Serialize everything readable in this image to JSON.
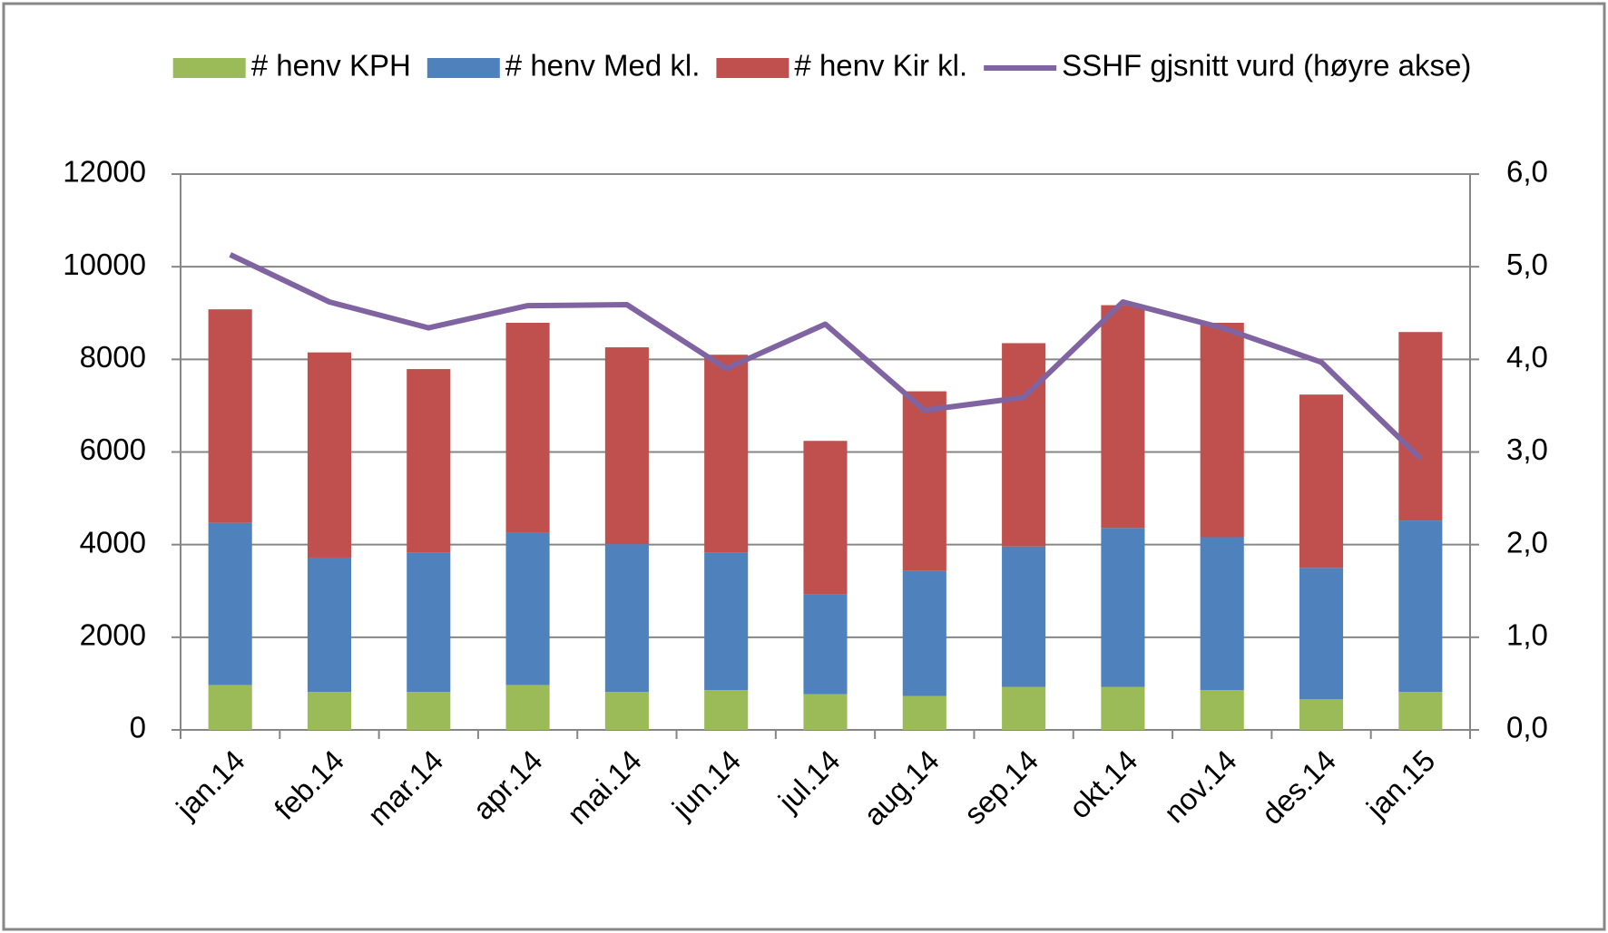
{
  "chart_data": {
    "type": "bar-line",
    "categories": [
      "jan.14",
      "feb.14",
      "mar.14",
      "apr.14",
      "mai.14",
      "jun.14",
      "jul.14",
      "aug.14",
      "sep.14",
      "okt.14",
      "nov.14",
      "des.14",
      "jan.15"
    ],
    "series": [
      {
        "name": "# henv KPH",
        "color": "#9bbb59",
        "type": "bar",
        "values": [
          970,
          820,
          820,
          970,
          820,
          860,
          770,
          730,
          930,
          930,
          860,
          660,
          820
        ]
      },
      {
        "name": "# henv Med kl.",
        "color": "#4f81bd",
        "type": "bar",
        "values": [
          3500,
          2900,
          3010,
          3280,
          3190,
          2970,
          2150,
          2700,
          3030,
          3430,
          3300,
          2840,
          3700
        ]
      },
      {
        "name": "# henv Kir kl.",
        "color": "#c0504d",
        "type": "bar",
        "values": [
          4610,
          4430,
          3960,
          4540,
          4250,
          4270,
          3320,
          3880,
          4390,
          4810,
          4630,
          3740,
          4070
        ]
      },
      {
        "name": "SSHF gjsnitt vurd (høyre akse)",
        "color": "#8064a2",
        "type": "line",
        "axis": "y2",
        "values": [
          5.13,
          4.62,
          4.34,
          4.58,
          4.59,
          3.9,
          4.38,
          3.45,
          3.59,
          4.62,
          4.34,
          3.97,
          2.93
        ]
      }
    ],
    "ylim": [
      0,
      12000
    ],
    "yticks": [
      0,
      2000,
      4000,
      6000,
      8000,
      10000,
      12000
    ],
    "y2lim": [
      0,
      6
    ],
    "y2ticks": [
      {
        "value": 0,
        "label": "0,0"
      },
      {
        "value": 1,
        "label": "1,0"
      },
      {
        "value": 2,
        "label": "2,0"
      },
      {
        "value": 3,
        "label": "3,0"
      },
      {
        "value": 4,
        "label": "4,0"
      },
      {
        "value": 5,
        "label": "5,0"
      },
      {
        "value": 6,
        "label": "6,0"
      }
    ],
    "grid": true,
    "legend": "top"
  }
}
